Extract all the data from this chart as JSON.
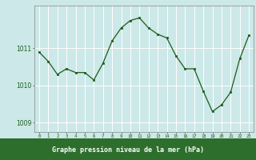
{
  "x": [
    0,
    1,
    2,
    3,
    4,
    5,
    6,
    7,
    8,
    9,
    10,
    11,
    12,
    13,
    14,
    15,
    16,
    17,
    18,
    19,
    20,
    21,
    22,
    23
  ],
  "y": [
    1010.9,
    1010.65,
    1010.3,
    1010.45,
    1010.35,
    1010.35,
    1010.15,
    1010.6,
    1011.2,
    1011.55,
    1011.75,
    1011.82,
    1011.55,
    1011.38,
    1011.28,
    1010.8,
    1010.45,
    1010.45,
    1009.85,
    1009.3,
    1009.48,
    1009.82,
    1010.72,
    1011.35
  ],
  "line_color": "#1a5c1a",
  "marker_color": "#1a5c1a",
  "bg_color": "#cce8e8",
  "plot_bg_color": "#cce8e8",
  "bottom_bar_color": "#2d6e2d",
  "grid_color": "#ffffff",
  "axis_color": "#555555",
  "tick_color": "#1a5c1a",
  "label_color": "#ffffff",
  "xlabel": "Graphe pression niveau de la mer (hPa)",
  "yticks": [
    1009,
    1010,
    1011
  ],
  "xtick_labels": [
    "0",
    "1",
    "2",
    "3",
    "4",
    "5",
    "6",
    "7",
    "8",
    "9",
    "10",
    "11",
    "12",
    "13",
    "14",
    "15",
    "16",
    "17",
    "18",
    "19",
    "20",
    "21",
    "22",
    "23"
  ],
  "ylim": [
    1008.75,
    1012.15
  ],
  "xlim": [
    -0.5,
    23.5
  ]
}
